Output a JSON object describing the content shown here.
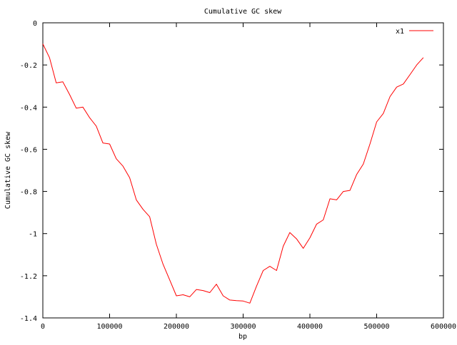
{
  "chart_data": {
    "type": "line",
    "title": "Cumulative GC skew",
    "xlabel": "bp",
    "ylabel": "Cumulative GC skew",
    "xlim": [
      0,
      600000
    ],
    "ylim": [
      -1.4,
      0
    ],
    "x_ticks": [
      0,
      100000,
      200000,
      300000,
      400000,
      500000,
      600000
    ],
    "x_tick_labels": [
      "0",
      "100000",
      "200000",
      "300000",
      "400000",
      "500000",
      "600000"
    ],
    "y_ticks": [
      0,
      -0.2,
      -0.4,
      -0.6,
      -0.8,
      -1,
      -1.2,
      -1.4
    ],
    "y_tick_labels": [
      "0",
      "-0.2",
      "-0.4",
      "-0.6",
      "-0.8",
      "-1",
      "-1.2",
      "-1.4"
    ],
    "grid": false,
    "legend_position": "top-right",
    "series": [
      {
        "name": "x1",
        "color": "#ff0000",
        "x": [
          0,
          10000,
          20000,
          30000,
          40000,
          50000,
          60000,
          70000,
          80000,
          90000,
          100000,
          110000,
          120000,
          130000,
          140000,
          150000,
          160000,
          170000,
          180000,
          190000,
          200000,
          210000,
          220000,
          230000,
          240000,
          250000,
          260000,
          270000,
          280000,
          290000,
          300000,
          310000,
          320000,
          330000,
          340000,
          350000,
          360000,
          370000,
          380000,
          390000,
          400000,
          410000,
          420000,
          430000,
          440000,
          450000,
          460000,
          470000,
          480000,
          490000,
          500000,
          510000,
          520000,
          530000,
          540000,
          550000,
          560000,
          570000
        ],
        "y": [
          -0.1,
          -0.165,
          -0.285,
          -0.28,
          -0.34,
          -0.405,
          -0.4,
          -0.45,
          -0.49,
          -0.57,
          -0.575,
          -0.645,
          -0.68,
          -0.735,
          -0.84,
          -0.885,
          -0.92,
          -1.05,
          -1.145,
          -1.22,
          -1.295,
          -1.29,
          -1.3,
          -1.265,
          -1.27,
          -1.28,
          -1.24,
          -1.295,
          -1.315,
          -1.318,
          -1.32,
          -1.33,
          -1.25,
          -1.175,
          -1.155,
          -1.175,
          -1.06,
          -0.995,
          -1.025,
          -1.07,
          -1.02,
          -0.955,
          -0.935,
          -0.835,
          -0.84,
          -0.8,
          -0.795,
          -0.72,
          -0.67,
          -0.575,
          -0.47,
          -0.43,
          -0.35,
          -0.305,
          -0.29,
          -0.245,
          -0.2,
          -0.165
        ]
      }
    ]
  }
}
